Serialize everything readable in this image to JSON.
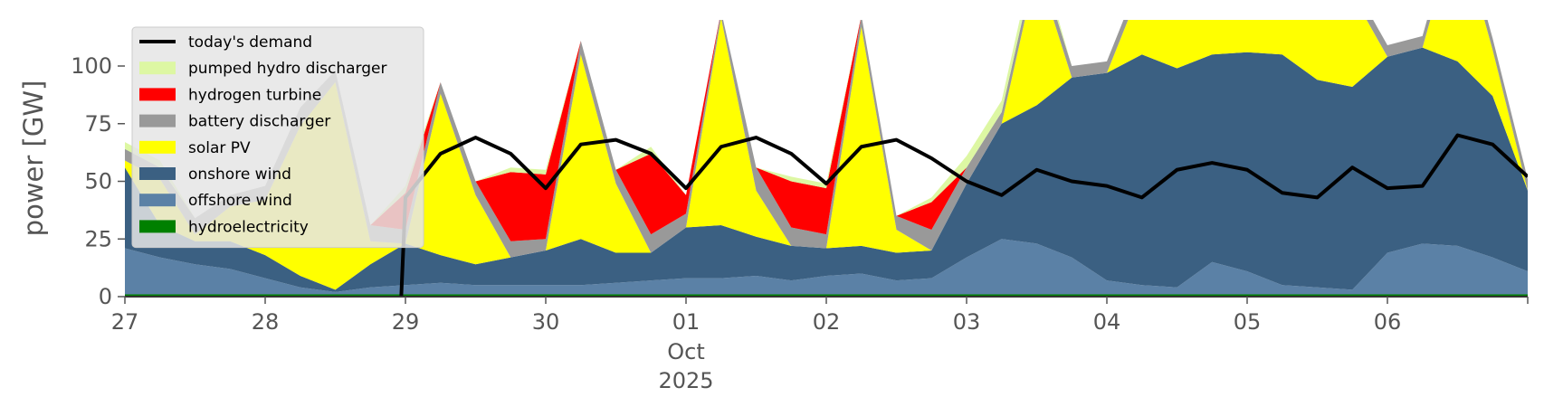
{
  "chart_data": {
    "type": "area",
    "title": "",
    "ylabel": "power [GW]",
    "xlabel": "",
    "ylim": [
      0,
      120
    ],
    "y_ticks": [
      0,
      25,
      50,
      75,
      100
    ],
    "y_tick_labels": [
      "0",
      "25",
      "50",
      "75",
      "100"
    ],
    "x_range": [
      0,
      10
    ],
    "x_ticks": [
      0,
      1,
      2,
      3,
      4,
      5,
      6,
      7,
      8,
      9,
      10
    ],
    "x_tick_labels": [
      "27",
      "28",
      "29",
      "30",
      "01",
      "02",
      "03",
      "04",
      "05",
      "06",
      ""
    ],
    "x_secondary_label": [
      "Oct",
      "2025"
    ],
    "x_secondary_at": 4,
    "grid": false,
    "legend_position": "top-left",
    "x": [
      0.0,
      0.25,
      0.5,
      0.75,
      1.0,
      1.25,
      1.5,
      1.75,
      2.0,
      2.25,
      2.5,
      2.75,
      3.0,
      3.25,
      3.5,
      3.75,
      4.0,
      4.25,
      4.5,
      4.75,
      5.0,
      5.25,
      5.5,
      5.75,
      6.0,
      6.25,
      6.5,
      6.75,
      7.0,
      7.25,
      7.5,
      7.75,
      8.0,
      8.25,
      8.5,
      8.75,
      9.0,
      9.25,
      9.5,
      9.75,
      10.0
    ],
    "stack_order": [
      "hydroelectricity",
      "offshore wind",
      "onshore wind",
      "solar PV",
      "battery discharger",
      "hydrogen turbine",
      "pumped hydro discharger"
    ],
    "series": [
      {
        "name": "hydroelectricity",
        "color": "#008000",
        "values": [
          1,
          1,
          1,
          1,
          1,
          1,
          1,
          1,
          1,
          1,
          1,
          1,
          1,
          1,
          1,
          1,
          1,
          1,
          1,
          1,
          1,
          1,
          1,
          1,
          1,
          1,
          1,
          1,
          1,
          1,
          1,
          1,
          1,
          1,
          1,
          1,
          1,
          1,
          1,
          1,
          1
        ]
      },
      {
        "name": "offshore wind",
        "color": "#5b81a6",
        "values": [
          20,
          16,
          13,
          11,
          7,
          3,
          1,
          3,
          4,
          5,
          4,
          4,
          4,
          4,
          5,
          6,
          7,
          7,
          8,
          6,
          8,
          9,
          6,
          7,
          16,
          24,
          22,
          16,
          6,
          4,
          3,
          14,
          10,
          4,
          3,
          2,
          18,
          22,
          21,
          16,
          10
        ]
      },
      {
        "name": "onshore wind",
        "color": "#3b6082",
        "values": [
          35,
          14,
          10,
          12,
          10,
          5,
          1,
          10,
          18,
          12,
          9,
          12,
          15,
          20,
          13,
          12,
          22,
          23,
          17,
          15,
          12,
          12,
          12,
          12,
          32,
          50,
          60,
          78,
          90,
          100,
          95,
          90,
          95,
          100,
          90,
          88,
          85,
          85,
          80,
          70,
          35
        ]
      },
      {
        "name": "solar PV",
        "color": "#ffff00",
        "values": [
          3,
          20,
          3,
          15,
          24,
          65,
          90,
          10,
          0,
          70,
          30,
          0,
          0,
          80,
          30,
          0,
          0,
          90,
          20,
          0,
          0,
          95,
          10,
          0,
          0,
          0,
          60,
          0,
          0,
          30,
          60,
          50,
          60,
          80,
          60,
          40,
          0,
          0,
          60,
          20,
          0
        ]
      },
      {
        "name": "battery discharger",
        "color": "#999999",
        "values": [
          5,
          5,
          7,
          5,
          6,
          8,
          5,
          7,
          6,
          5,
          6,
          7,
          5,
          6,
          6,
          8,
          6,
          3,
          10,
          8,
          6,
          5,
          6,
          9,
          7,
          5,
          5,
          5,
          5,
          5,
          5,
          5,
          5,
          5,
          5,
          5,
          5,
          5,
          5,
          5,
          5
        ]
      },
      {
        "name": "hydrogen turbine",
        "color": "#ff0000",
        "values": [
          0,
          0,
          0,
          0,
          0,
          0,
          0,
          0,
          16,
          0,
          0,
          30,
          28,
          0,
          0,
          35,
          8,
          0,
          0,
          20,
          20,
          0,
          0,
          12,
          0,
          0,
          0,
          0,
          0,
          0,
          0,
          0,
          0,
          0,
          0,
          0,
          0,
          0,
          0,
          0,
          0
        ]
      },
      {
        "name": "pumped hydro discharger",
        "color": "#ddf7a3",
        "values": [
          3,
          3,
          0,
          0,
          0,
          0,
          0,
          0,
          3,
          0,
          0,
          2,
          2,
          0,
          0,
          3,
          0,
          0,
          0,
          2,
          2,
          0,
          0,
          2,
          5,
          5,
          5,
          0,
          0,
          0,
          0,
          0,
          0,
          0,
          0,
          0,
          0,
          0,
          0,
          0,
          0
        ]
      }
    ],
    "line_series": {
      "name": "today's demand",
      "color": "#000000",
      "x_start": 1.97,
      "x": [
        1.97,
        2.0,
        2.25,
        2.5,
        2.75,
        3.0,
        3.25,
        3.5,
        3.75,
        4.0,
        4.25,
        4.5,
        4.75,
        5.0,
        5.25,
        5.5,
        5.75,
        6.0,
        6.25,
        6.5,
        6.75,
        7.0,
        7.25,
        7.5,
        7.75,
        8.0,
        8.25,
        8.5,
        8.75,
        9.0,
        9.25,
        9.5,
        9.75,
        10.0
      ],
      "values": [
        0,
        43,
        62,
        69,
        62,
        47,
        66,
        68,
        62,
        47,
        65,
        69,
        62,
        49,
        65,
        68,
        60,
        50,
        44,
        55,
        50,
        48,
        43,
        55,
        58,
        55,
        45,
        43,
        56,
        47,
        48,
        70,
        66,
        52
      ]
    }
  },
  "legend": [
    {
      "label": "today's demand",
      "kind": "line",
      "color": "#000000"
    },
    {
      "label": "pumped hydro discharger",
      "kind": "patch",
      "color": "#ddf7a3"
    },
    {
      "label": "hydrogen turbine",
      "kind": "patch",
      "color": "#ff0000"
    },
    {
      "label": "battery discharger",
      "kind": "patch",
      "color": "#999999"
    },
    {
      "label": "solar PV",
      "kind": "patch",
      "color": "#ffff00"
    },
    {
      "label": "onshore wind",
      "kind": "patch",
      "color": "#3b6082"
    },
    {
      "label": "offshore wind",
      "kind": "patch",
      "color": "#5b81a6"
    },
    {
      "label": "hydroelectricity",
      "kind": "patch",
      "color": "#008000"
    }
  ]
}
